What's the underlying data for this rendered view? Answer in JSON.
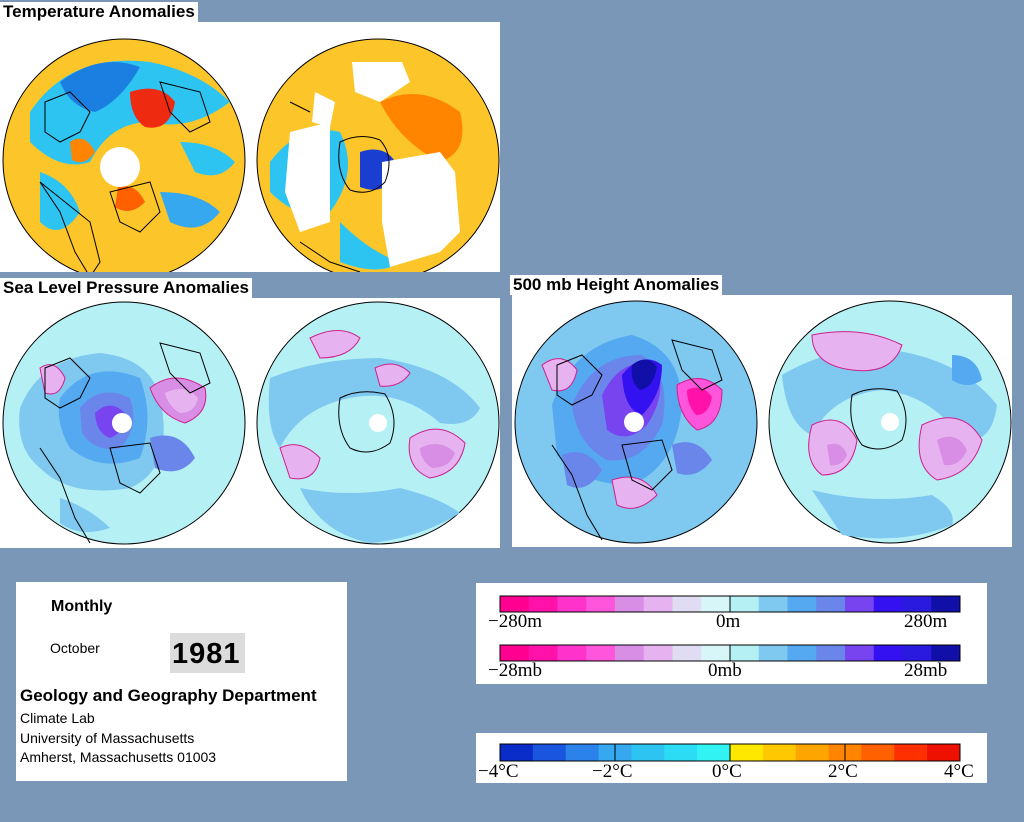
{
  "titles": {
    "temperature": "Temperature Anomalies",
    "slp": "Sea Level Pressure Anomalies",
    "height500": "500 mb Height Anomalies"
  },
  "maps": [
    {
      "name": "Temperature anomalies — Northern Hemisphere",
      "field": "temperature"
    },
    {
      "name": "Temperature anomalies — Southern Hemisphere",
      "field": "temperature"
    },
    {
      "name": "Sea level pressure anomalies — Northern Hemisphere",
      "field": "pressure"
    },
    {
      "name": "Sea level pressure anomalies — Southern Hemisphere",
      "field": "pressure"
    },
    {
      "name": "500 mb height anomalies — Northern Hemisphere",
      "field": "height"
    },
    {
      "name": "500 mb height anomalies — Southern Hemisphere",
      "field": "height"
    }
  ],
  "info": {
    "period": "Monthly",
    "month": "October",
    "year": "1981",
    "department": "Geology and Geography Department",
    "lab": "Climate Lab",
    "university": "University of Massachusetts",
    "address": "Amherst, Massachusetts 01003"
  },
  "legend": {
    "height_labels": [
      "−280m",
      "0m",
      "280m"
    ],
    "pressure_labels": [
      "−28mb",
      "0mb",
      "28mb"
    ],
    "temperature_labels": [
      "−4°C",
      "−2°C",
      "0°C",
      "2°C",
      "4°C"
    ],
    "anomaly_colors": [
      "#ff0090",
      "#ff11aa",
      "#ff33cc",
      "#ff55dd",
      "#d98ee6",
      "#e6b3f0",
      "#e0dcf4",
      "#d6f6f8",
      "#b5f0f5",
      "#7fc8f0",
      "#55a9f0",
      "#6a86ea",
      "#7744f0",
      "#3311f0",
      "#2a1ae0",
      "#1010a8"
    ],
    "temperature_colors": [
      "#0a2cc8",
      "#1a55e0",
      "#2a82ea",
      "#35a8ef",
      "#2ec4f2",
      "#2bdcf4",
      "#32f3f4",
      "#ffe800",
      "#ffc800",
      "#ffa500",
      "#ff8500",
      "#ff6000",
      "#ff3000",
      "#ee1000"
    ]
  }
}
